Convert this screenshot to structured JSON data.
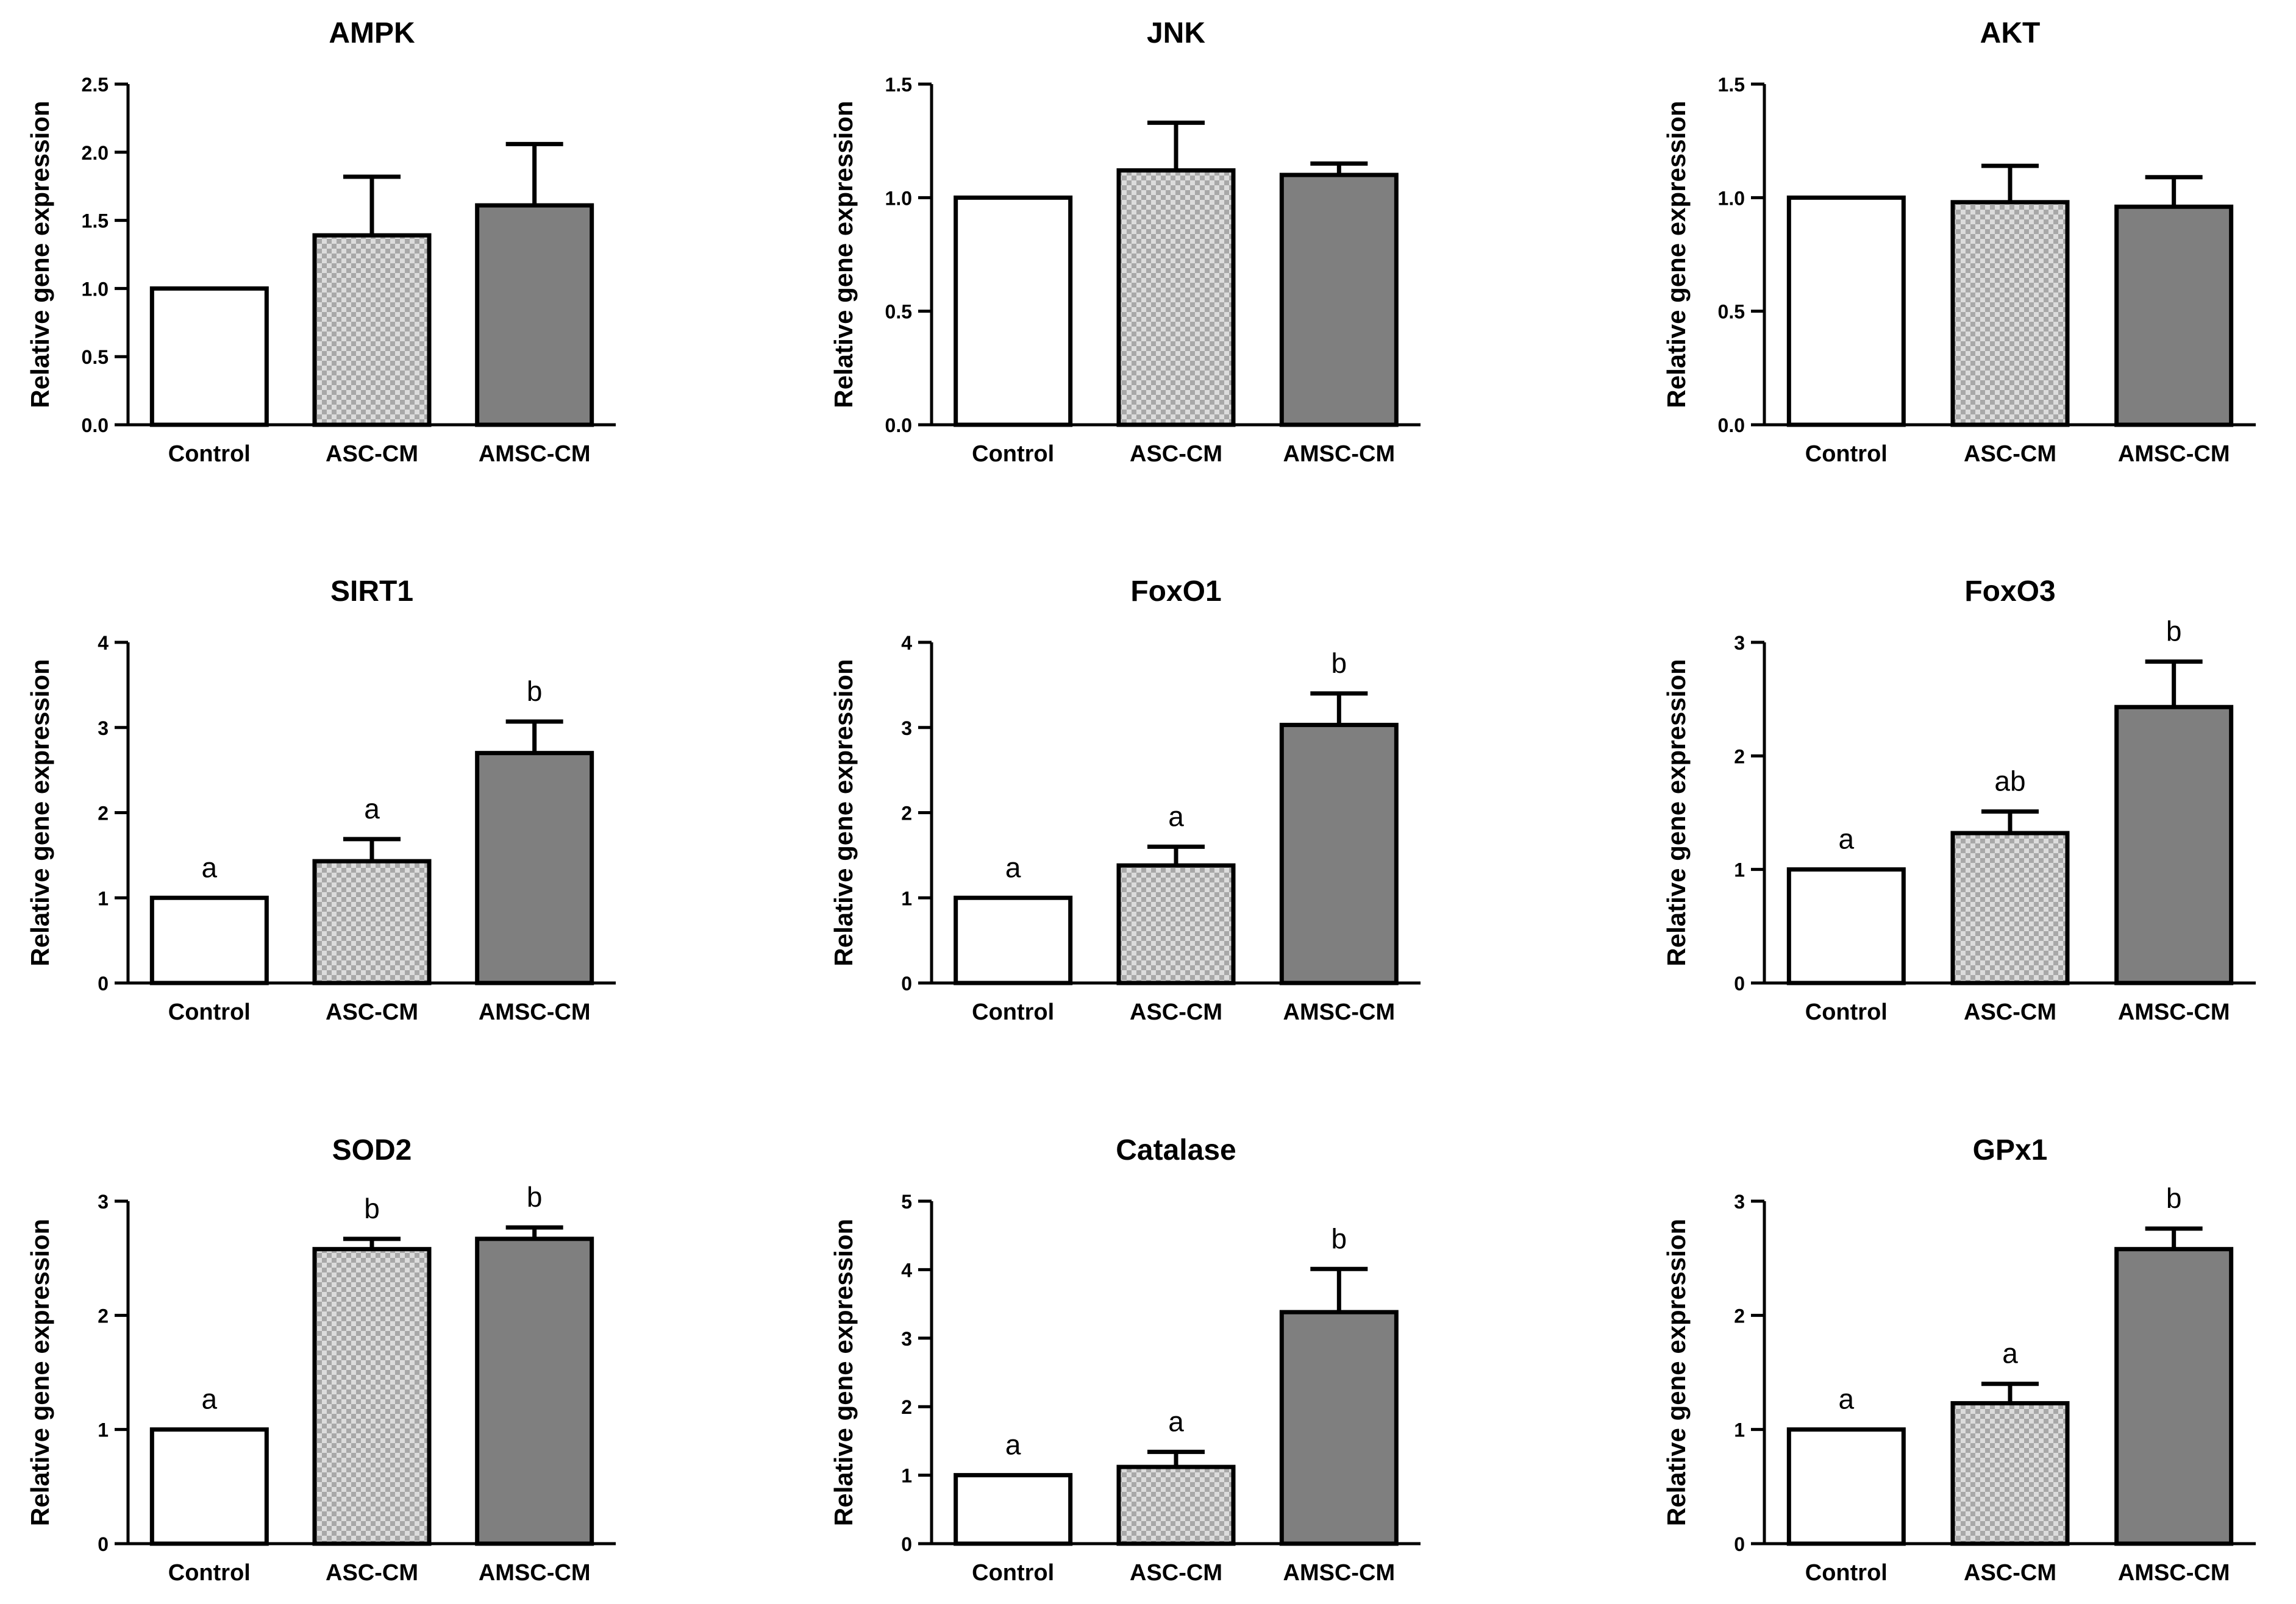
{
  "figure": {
    "background": "#ffffff"
  },
  "chart_data": [
    {
      "type": "bar",
      "title": "AMPK",
      "ylabel": "Relative gene expression",
      "xlabel": "",
      "categories": [
        "Control",
        "ASC-CM",
        "AMSC-CM"
      ],
      "values": [
        1.0,
        1.39,
        1.61
      ],
      "errors": [
        0,
        0.43,
        0.45
      ],
      "ylim": [
        0,
        2.5
      ],
      "yticks": [
        "0.0",
        "0.5",
        "1.0",
        "1.5",
        "2.0",
        "2.5"
      ],
      "sig_labels": [
        "",
        "",
        ""
      ]
    },
    {
      "type": "bar",
      "title": "JNK",
      "ylabel": "Relative gene expression",
      "xlabel": "",
      "categories": [
        "Control",
        "ASC-CM",
        "AMSC-CM"
      ],
      "values": [
        1.0,
        1.12,
        1.1
      ],
      "errors": [
        0,
        0.21,
        0.05
      ],
      "ylim": [
        0,
        1.5
      ],
      "yticks": [
        "0.0",
        "0.5",
        "1.0",
        "1.5"
      ],
      "sig_labels": [
        "",
        "",
        ""
      ]
    },
    {
      "type": "bar",
      "title": "AKT",
      "ylabel": "Relative gene expression",
      "xlabel": "",
      "categories": [
        "Control",
        "ASC-CM",
        "AMSC-CM"
      ],
      "values": [
        1.0,
        0.98,
        0.96
      ],
      "errors": [
        0,
        0.16,
        0.13
      ],
      "ylim": [
        0,
        1.5
      ],
      "yticks": [
        "0.0",
        "0.5",
        "1.0",
        "1.5"
      ],
      "sig_labels": [
        "",
        "",
        ""
      ]
    },
    {
      "type": "bar",
      "title": "SIRT1",
      "ylabel": "Relative gene expression",
      "xlabel": "",
      "categories": [
        "Control",
        "ASC-CM",
        "AMSC-CM"
      ],
      "values": [
        1.0,
        1.43,
        2.7
      ],
      "errors": [
        0,
        0.26,
        0.37
      ],
      "ylim": [
        0,
        4
      ],
      "yticks": [
        "0",
        "1",
        "2",
        "3",
        "4"
      ],
      "sig_labels": [
        "a",
        "a",
        "b"
      ]
    },
    {
      "type": "bar",
      "title": "FoxO1",
      "ylabel": "Relative gene expression",
      "xlabel": "",
      "categories": [
        "Control",
        "ASC-CM",
        "AMSC-CM"
      ],
      "values": [
        1.0,
        1.38,
        3.03
      ],
      "errors": [
        0,
        0.22,
        0.37
      ],
      "ylim": [
        0,
        4
      ],
      "yticks": [
        "0",
        "1",
        "2",
        "3",
        "4"
      ],
      "sig_labels": [
        "a",
        "a",
        "b"
      ]
    },
    {
      "type": "bar",
      "title": "FoxO3",
      "ylabel": "Relative gene expression",
      "xlabel": "",
      "categories": [
        "Control",
        "ASC-CM",
        "AMSC-CM"
      ],
      "values": [
        1.0,
        1.32,
        2.43
      ],
      "errors": [
        0,
        0.19,
        0.4
      ],
      "ylim": [
        0,
        3
      ],
      "yticks": [
        "0",
        "1",
        "2",
        "3"
      ],
      "sig_labels": [
        "a",
        "ab",
        "b"
      ]
    },
    {
      "type": "bar",
      "title": "SOD2",
      "ylabel": "Relative gene expression",
      "xlabel": "",
      "categories": [
        "Control",
        "ASC-CM",
        "AMSC-CM"
      ],
      "values": [
        1.0,
        2.58,
        2.67
      ],
      "errors": [
        0,
        0.09,
        0.1
      ],
      "ylim": [
        0,
        3
      ],
      "yticks": [
        "0",
        "1",
        "2",
        "3"
      ],
      "sig_labels": [
        "a",
        "b",
        "b"
      ]
    },
    {
      "type": "bar",
      "title": "Catalase",
      "ylabel": "Relative gene expression",
      "xlabel": "",
      "categories": [
        "Control",
        "ASC-CM",
        "AMSC-CM"
      ],
      "values": [
        1.0,
        1.12,
        3.38
      ],
      "errors": [
        0,
        0.22,
        0.63
      ],
      "ylim": [
        0,
        5
      ],
      "yticks": [
        "0",
        "1",
        "2",
        "3",
        "4",
        "5"
      ],
      "sig_labels": [
        "a",
        "a",
        "b"
      ]
    },
    {
      "type": "bar",
      "title": "GPx1",
      "ylabel": "Relative gene expression",
      "xlabel": "",
      "categories": [
        "Control",
        "ASC-CM",
        "AMSC-CM"
      ],
      "values": [
        1.0,
        1.23,
        2.58
      ],
      "errors": [
        0,
        0.17,
        0.18
      ],
      "ylim": [
        0,
        3
      ],
      "yticks": [
        "0",
        "1",
        "2",
        "3"
      ],
      "sig_labels": [
        "a",
        "a",
        "b"
      ]
    }
  ],
  "bar_styles": [
    {
      "fill": "#ffffff",
      "pattern": "none"
    },
    {
      "fill": "#c8c8c8",
      "pattern": "checker"
    },
    {
      "fill": "#7f7f7f",
      "pattern": "none"
    }
  ]
}
